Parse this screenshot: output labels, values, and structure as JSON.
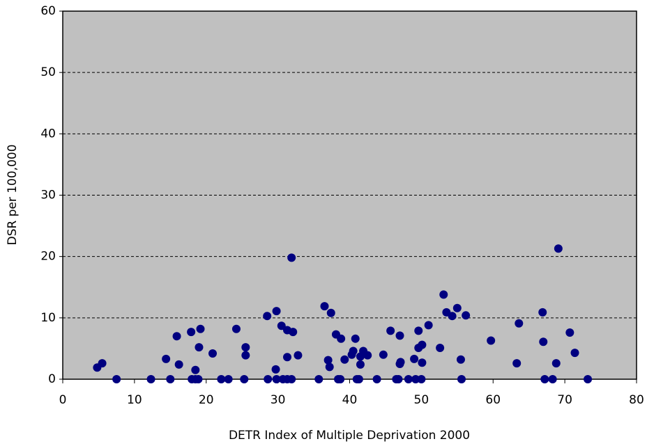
{
  "chart_data": {
    "type": "scatter",
    "xlabel": "DETR Index of Multiple Deprivation 2000",
    "ylabel": "DSR per 100,000",
    "xlim": [
      0,
      80
    ],
    "xticks": [
      0,
      10,
      20,
      30,
      40,
      50,
      60,
      70,
      80
    ],
    "ylim": [
      0,
      60
    ],
    "yticks": [
      0,
      10,
      20,
      30,
      40,
      50,
      60
    ],
    "grid": true,
    "color": "#000080",
    "background": "#c0c0c0",
    "x": [
      4.8,
      5.5,
      7.5,
      12.3,
      14.4,
      15.0,
      15.9,
      16.2,
      17.9,
      18.0,
      18.5,
      18.5,
      18.9,
      19.0,
      19.2,
      20.9,
      22.1,
      23.1,
      24.2,
      25.3,
      25.5,
      25.5,
      28.5,
      28.6,
      29.7,
      29.8,
      29.8,
      30.5,
      30.7,
      31.3,
      31.3,
      31.3,
      31.9,
      31.9,
      32.1,
      32.8,
      35.7,
      36.5,
      37.0,
      37.2,
      37.4,
      38.1,
      38.4,
      38.8,
      38.7,
      39.3,
      40.3,
      40.5,
      40.8,
      41.0,
      41.3,
      41.5,
      41.5,
      41.9,
      42.5,
      43.8,
      44.7,
      45.7,
      46.5,
      46.8,
      47.0,
      47.1,
      47.0,
      48.2,
      49.0,
      49.2,
      49.6,
      49.6,
      50.0,
      50.1,
      50.1,
      51.0,
      52.6,
      53.1,
      53.5,
      54.3,
      55.0,
      55.5,
      55.6,
      56.2,
      59.7,
      63.3,
      63.6,
      66.9,
      67.0,
      67.2,
      68.3,
      68.8,
      69.1,
      70.7,
      71.4,
      73.2
    ],
    "values": [
      1.9,
      2.6,
      0,
      0,
      3.3,
      0,
      7.0,
      2.4,
      7.7,
      0,
      1.5,
      0,
      0,
      5.2,
      8.2,
      4.2,
      0,
      0,
      8.2,
      0,
      5.2,
      3.9,
      10.3,
      0,
      1.6,
      11.1,
      0,
      8.7,
      0,
      0,
      8.0,
      3.6,
      0,
      19.8,
      7.7,
      3.9,
      0,
      11.9,
      3.1,
      2.0,
      10.8,
      7.3,
      0,
      6.6,
      0,
      3.2,
      4.0,
      4.6,
      6.6,
      0,
      0,
      2.4,
      3.7,
      4.6,
      3.9,
      0,
      4.0,
      7.9,
      0,
      0,
      2.5,
      2.8,
      7.1,
      0,
      3.3,
      0,
      7.9,
      5.1,
      0,
      5.6,
      2.7,
      8.8,
      5.1,
      13.8,
      10.9,
      10.3,
      11.6,
      3.2,
      0,
      10.4,
      6.3,
      2.6,
      9.1,
      10.9,
      6.1,
      0,
      0,
      2.6,
      21.3,
      7.6,
      4.3,
      0
    ]
  }
}
